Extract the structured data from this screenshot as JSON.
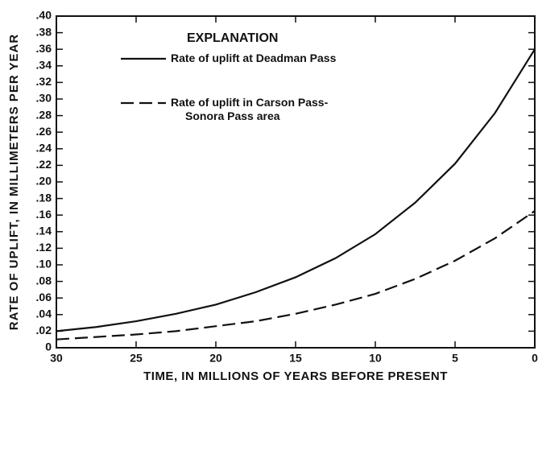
{
  "chart_data": {
    "type": "line",
    "xlabel": "TIME, IN MILLIONS OF YEARS BEFORE PRESENT",
    "ylabel": "RATE OF UPLIFT, IN MILLIMETERS PER YEAR",
    "legend_title": "EXPLANATION",
    "x": [
      30,
      27.5,
      25,
      22.5,
      20,
      17.5,
      15,
      12.5,
      10,
      7.5,
      5,
      2.5,
      0
    ],
    "series": [
      {
        "name": "Rate of uplift at Deadman Pass",
        "color": "#111111",
        "line_style": "solid",
        "values": [
          0.02,
          0.025,
          0.032,
          0.041,
          0.052,
          0.067,
          0.085,
          0.108,
          0.137,
          0.175,
          0.222,
          0.283,
          0.36
        ]
      },
      {
        "name": "Rate of uplift in Carson Pass-Sonora Pass area",
        "color": "#111111",
        "line_style": "dashed",
        "values": [
          0.01,
          0.013,
          0.016,
          0.02,
          0.026,
          0.032,
          0.041,
          0.052,
          0.065,
          0.083,
          0.105,
          0.132,
          0.165
        ]
      }
    ],
    "xlim": [
      30,
      0
    ],
    "xticks": [
      30,
      25,
      20,
      15,
      10,
      5,
      0
    ],
    "ylim": [
      0,
      0.4
    ],
    "yticks": [
      0,
      {
        "value": 0.02,
        "label": ".02"
      },
      {
        "value": 0.04,
        "label": ".04"
      },
      {
        "value": 0.06,
        "label": ".06"
      },
      {
        "value": 0.08,
        "label": ".08"
      },
      {
        "value": 0.1,
        "label": ".10"
      },
      {
        "value": 0.12,
        "label": ".12"
      },
      {
        "value": 0.14,
        "label": ".14"
      },
      {
        "value": 0.16,
        "label": ".16"
      },
      {
        "value": 0.18,
        "label": ".18"
      },
      {
        "value": 0.2,
        "label": ".20"
      },
      {
        "value": 0.22,
        "label": ".22"
      },
      {
        "value": 0.24,
        "label": ".24"
      },
      {
        "value": 0.26,
        "label": ".26"
      },
      {
        "value": 0.28,
        "label": ".28"
      },
      {
        "value": 0.3,
        "label": ".30"
      },
      {
        "value": 0.32,
        "label": ".32"
      },
      {
        "value": 0.34,
        "label": ".34"
      },
      {
        "value": 0.36,
        "label": ".36"
      },
      {
        "value": 0.38,
        "label": ".38"
      },
      {
        "value": 0.4,
        "label": ".40"
      }
    ],
    "grid": false
  }
}
